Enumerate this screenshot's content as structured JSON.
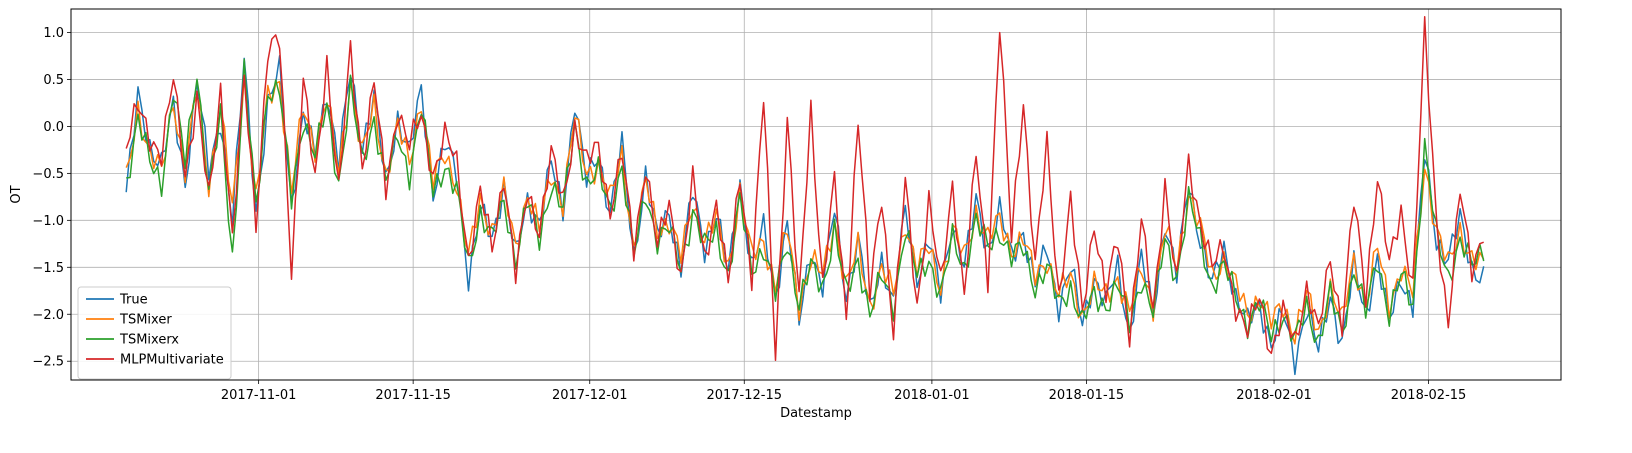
{
  "chart_data": {
    "type": "line",
    "title": "",
    "xlabel": "Datestamp",
    "ylabel": "OT",
    "x_range": [
      "2017-10-15",
      "2018-02-27"
    ],
    "xlim": [
      "2017-10-15",
      "2018-02-27"
    ],
    "ylim": [
      -2.7,
      1.25
    ],
    "grid": true,
    "legend_position": "lower-left",
    "x_ticks": [
      "2017-11-01",
      "2017-11-15",
      "2017-12-01",
      "2017-12-15",
      "2018-01-01",
      "2018-01-15",
      "2018-02-01",
      "2018-02-15"
    ],
    "y_ticks": [
      1.0,
      0.5,
      0.0,
      -0.5,
      -1.0,
      -1.5,
      -2.0,
      -2.5
    ],
    "y_tick_labels": [
      "1.0",
      "0.5",
      "0.0",
      "−0.5",
      "−1.0",
      "−1.5",
      "−2.0",
      "−2.5"
    ],
    "x_start": "2017-10-20",
    "x_end": "2018-02-20",
    "series": [
      {
        "name": "True",
        "color": "#1f77b4",
        "values": [
          -0.7,
          0.3,
          -0.2,
          -0.4,
          0.2,
          -0.6,
          0.5,
          -0.5,
          0.1,
          -1.0,
          0.7,
          -0.9,
          0.2,
          0.6,
          -0.8,
          0.1,
          -0.3,
          0.4,
          -0.4,
          0.6,
          -0.2,
          0.3,
          -0.6,
          0.1,
          -0.3,
          0.4,
          -0.7,
          -0.2,
          -0.5,
          -1.6,
          -0.9,
          -1.2,
          -0.6,
          -1.4,
          -0.8,
          -1.0,
          -0.4,
          -0.9,
          0.3,
          -0.6,
          -0.3,
          -0.9,
          -0.2,
          -1.4,
          -0.5,
          -1.2,
          -0.9,
          -1.5,
          -0.7,
          -1.3,
          -0.9,
          -1.6,
          -0.6,
          -1.5,
          -1.1,
          -1.8,
          -1.0,
          -2.1,
          -1.3,
          -1.7,
          -0.9,
          -1.8,
          -1.2,
          -2.0,
          -1.4,
          -1.9,
          -0.9,
          -1.6,
          -1.2,
          -1.8,
          -1.0,
          -1.5,
          -0.8,
          -1.3,
          -0.9,
          -1.4,
          -1.1,
          -1.7,
          -1.3,
          -1.9,
          -1.5,
          -2.1,
          -1.6,
          -1.9,
          -1.5,
          -2.2,
          -1.4,
          -2.0,
          -1.0,
          -1.6,
          -0.6,
          -1.2,
          -1.7,
          -1.3,
          -1.8,
          -2.1,
          -1.9,
          -2.3,
          -2.0,
          -2.5,
          -1.9,
          -2.4,
          -1.8,
          -2.3,
          -1.5,
          -2.0,
          -1.4,
          -2.1,
          -1.6,
          -1.9,
          -0.3,
          -1.2,
          -1.4,
          -1.0,
          -1.5,
          -1.6
        ],
        "note_max": "peaks near 0.8 early, minimum near −2.5 around 2018-01-30"
      },
      {
        "name": "TSMixer",
        "color": "#ff7f0e",
        "values": [
          -0.6,
          0.2,
          -0.3,
          -0.5,
          0.3,
          -0.5,
          0.4,
          -0.6,
          0.2,
          -0.9,
          0.5,
          -0.8,
          0.3,
          0.5,
          -0.7,
          0.2,
          -0.2,
          0.3,
          -0.5,
          0.5,
          -0.3,
          0.2,
          -0.5,
          0.0,
          -0.4,
          0.3,
          -0.6,
          -0.3,
          -0.6,
          -1.4,
          -0.8,
          -1.1,
          -0.7,
          -1.3,
          -0.7,
          -1.1,
          -0.5,
          -0.8,
          0.1,
          -0.5,
          -0.4,
          -0.8,
          -0.3,
          -1.3,
          -0.6,
          -1.1,
          -1.0,
          -1.4,
          -0.8,
          -1.2,
          -1.0,
          -1.5,
          -0.7,
          -1.4,
          -1.2,
          -1.7,
          -1.1,
          -1.9,
          -1.4,
          -1.6,
          -1.0,
          -1.7,
          -1.3,
          -1.9,
          -1.5,
          -1.8,
          -1.0,
          -1.5,
          -1.3,
          -1.7,
          -1.1,
          -1.4,
          -0.9,
          -1.2,
          -1.0,
          -1.3,
          -1.2,
          -1.6,
          -1.4,
          -1.8,
          -1.6,
          -2.0,
          -1.7,
          -1.8,
          -1.6,
          -2.0,
          -1.5,
          -1.9,
          -1.1,
          -1.5,
          -0.7,
          -1.1,
          -1.6,
          -1.4,
          -1.7,
          -2.0,
          -1.8,
          -2.1,
          -1.9,
          -2.2,
          -1.8,
          -2.2,
          -1.7,
          -2.1,
          -1.4,
          -1.9,
          -1.3,
          -1.9,
          -1.5,
          -1.8,
          -0.4,
          -1.1,
          -1.5,
          -1.1,
          -1.4,
          -1.5
        ]
      },
      {
        "name": "TSMixerx",
        "color": "#2ca02c",
        "values": [
          -0.6,
          0.1,
          -0.4,
          -0.6,
          0.4,
          -0.4,
          0.6,
          -0.7,
          0.1,
          -1.4,
          0.6,
          -0.9,
          0.4,
          0.4,
          -0.8,
          0.1,
          -0.3,
          0.2,
          -0.6,
          0.4,
          -0.4,
          0.1,
          -0.6,
          -0.1,
          -0.5,
          0.2,
          -0.7,
          -0.4,
          -0.7,
          -1.5,
          -0.9,
          -1.2,
          -0.8,
          -1.4,
          -0.8,
          -1.2,
          -0.6,
          -0.9,
          0.0,
          -0.6,
          -0.5,
          -0.9,
          -0.4,
          -1.4,
          -0.7,
          -1.2,
          -1.1,
          -1.5,
          -0.9,
          -1.3,
          -1.1,
          -1.6,
          -0.8,
          -1.5,
          -1.3,
          -1.8,
          -1.2,
          -1.9,
          -1.5,
          -1.7,
          -1.1,
          -1.8,
          -1.4,
          -2.0,
          -1.6,
          -1.9,
          -1.1,
          -1.6,
          -1.4,
          -1.8,
          -1.2,
          -1.5,
          -1.0,
          -1.3,
          -1.1,
          -1.4,
          -1.3,
          -1.7,
          -1.5,
          -1.9,
          -1.7,
          -2.1,
          -1.8,
          -1.9,
          -1.7,
          -2.1,
          -1.6,
          -2.0,
          -1.2,
          -1.6,
          -0.8,
          -1.2,
          -1.7,
          -1.5,
          -1.8,
          -2.1,
          -1.9,
          -2.2,
          -2.0,
          -2.3,
          -1.9,
          -2.3,
          -1.8,
          -2.2,
          -1.5,
          -2.0,
          -1.4,
          -2.0,
          -1.6,
          -1.9,
          -0.2,
          -1.2,
          -1.6,
          -1.2,
          -1.5,
          -1.3
        ]
      },
      {
        "name": "MLPMultivariate",
        "color": "#d62728",
        "values": [
          -0.2,
          0.2,
          -0.1,
          -0.3,
          0.5,
          -0.5,
          0.3,
          -0.8,
          0.4,
          -1.2,
          0.5,
          -1.0,
          0.8,
          0.9,
          -1.5,
          0.5,
          -0.6,
          0.7,
          -0.7,
          0.8,
          -0.4,
          0.5,
          -0.7,
          0.2,
          -0.2,
          0.1,
          -0.5,
          -0.1,
          -0.4,
          -1.4,
          -0.7,
          -1.3,
          -0.5,
          -1.6,
          -0.7,
          -1.1,
          -0.3,
          -0.8,
          0.0,
          -0.4,
          -0.2,
          -0.9,
          -0.3,
          -1.3,
          -0.4,
          -1.3,
          -0.8,
          -1.6,
          -0.6,
          -1.4,
          -0.8,
          -1.7,
          -0.5,
          -1.6,
          0.3,
          -2.4,
          0.1,
          -1.9,
          0.2,
          -1.7,
          -0.6,
          -2.0,
          0.1,
          -1.8,
          -0.7,
          -2.2,
          -0.6,
          -1.9,
          -0.8,
          -1.7,
          -0.6,
          -1.8,
          -0.3,
          -1.6,
          1.1,
          -1.2,
          0.3,
          -1.5,
          -0.2,
          -1.8,
          -0.8,
          -2.0,
          -1.0,
          -1.8,
          -1.2,
          -2.2,
          -1.0,
          -2.0,
          -0.6,
          -1.7,
          -0.4,
          -1.0,
          -1.5,
          -1.3,
          -1.9,
          -2.2,
          -1.8,
          -2.4,
          -2.0,
          -2.3,
          -1.7,
          -2.2,
          -1.4,
          -2.1,
          -0.8,
          -1.8,
          -0.5,
          -1.5,
          -0.9,
          -1.7,
          1.0,
          -1.0,
          -2.1,
          -0.7,
          -1.5,
          -1.1
        ]
      }
    ]
  }
}
